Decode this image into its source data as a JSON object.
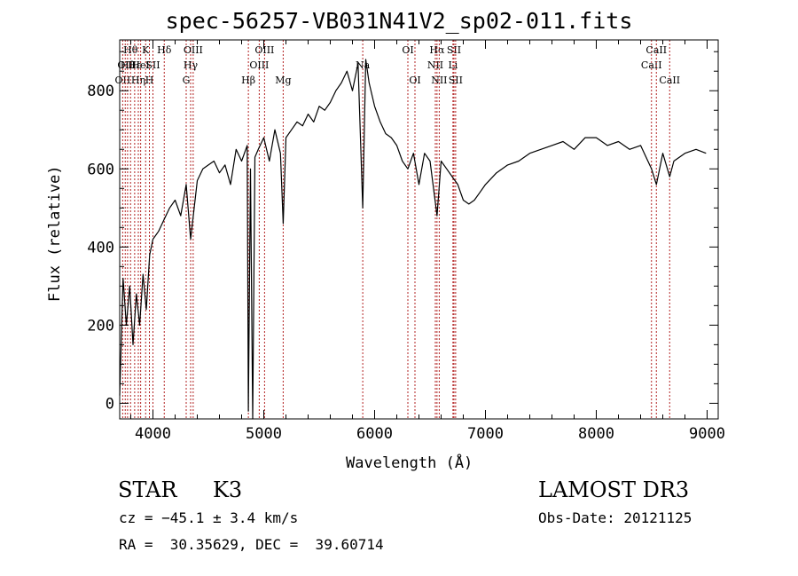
{
  "chart_data": {
    "type": "line",
    "title": "spec-56257-VB031N41V2_sp02-011.fits",
    "xlabel": "Wavelength (Å)",
    "ylabel": "Flux (relative)",
    "xlim": [
      3700,
      9100
    ],
    "ylim": [
      -40,
      930
    ],
    "x_ticks": [
      4000,
      5000,
      6000,
      7000,
      8000,
      9000
    ],
    "y_ticks": [
      0,
      200,
      400,
      600,
      800
    ],
    "grid": false,
    "series": [
      {
        "x": [
          3700,
          3730,
          3760,
          3790,
          3820,
          3850,
          3880,
          3910,
          3940,
          3970,
          4000,
          4050,
          4100,
          4150,
          4200,
          4250,
          4300,
          4340,
          4400,
          4450,
          4500,
          4550,
          4600,
          4650,
          4700,
          4750,
          4800,
          4850,
          4861,
          4880,
          4900,
          4920,
          4950,
          5000,
          5050,
          5100,
          5150,
          5175,
          5200,
          5250,
          5300,
          5350,
          5400,
          5450,
          5500,
          5550,
          5600,
          5650,
          5700,
          5750,
          5800,
          5850,
          5893,
          5920,
          5950,
          6000,
          6050,
          6100,
          6150,
          6200,
          6250,
          6300,
          6350,
          6400,
          6450,
          6500,
          6563,
          6600,
          6650,
          6700,
          6750,
          6800,
          6850,
          6900,
          6950,
          7000,
          7100,
          7200,
          7300,
          7400,
          7500,
          7600,
          7700,
          7800,
          7900,
          8000,
          8100,
          8200,
          8300,
          8400,
          8498,
          8542,
          8600,
          8662,
          8700,
          8800,
          8900,
          8990
        ],
        "y": [
          20,
          320,
          200,
          300,
          150,
          280,
          200,
          330,
          240,
          380,
          420,
          440,
          470,
          500,
          520,
          480,
          560,
          420,
          570,
          600,
          610,
          620,
          590,
          610,
          560,
          650,
          620,
          660,
          -20,
          600,
          -40,
          630,
          650,
          680,
          620,
          700,
          640,
          460,
          680,
          700,
          720,
          710,
          740,
          720,
          760,
          750,
          770,
          800,
          820,
          850,
          800,
          870,
          500,
          880,
          820,
          760,
          720,
          690,
          680,
          660,
          620,
          600,
          640,
          560,
          640,
          620,
          480,
          620,
          600,
          580,
          560,
          520,
          510,
          520,
          540,
          560,
          590,
          610,
          620,
          640,
          650,
          660,
          670,
          650,
          680,
          680,
          660,
          670,
          650,
          660,
          600,
          560,
          640,
          580,
          620,
          640,
          650,
          640
        ]
      }
    ],
    "line_labels": [
      {
        "w": 3727,
        "row": 2,
        "text": "OII"
      },
      {
        "w": 3750,
        "row": 1,
        "text": "OII"
      },
      {
        "w": 3771,
        "row": 1,
        "text": "Hθ"
      },
      {
        "w": 3798,
        "row": 0,
        "text": "Hθ"
      },
      {
        "w": 3835,
        "row": 1,
        "text": "Hε"
      },
      {
        "w": 3868,
        "row": 2,
        "text": "Hη"
      },
      {
        "w": 3889,
        "row": 1,
        "text": "HeI"
      },
      {
        "w": 3934,
        "row": 0,
        "text": "K"
      },
      {
        "w": 3968,
        "row": 2,
        "text": "H"
      },
      {
        "w": 4000,
        "row": 1,
        "text": "SII"
      },
      {
        "w": 4102,
        "row": 0,
        "text": "Hδ"
      },
      {
        "w": 4300,
        "row": 2,
        "text": "G"
      },
      {
        "w": 4340,
        "row": 1,
        "text": "Hγ"
      },
      {
        "w": 4363,
        "row": 0,
        "text": "OIII"
      },
      {
        "w": 4861,
        "row": 2,
        "text": "Hβ"
      },
      {
        "w": 4959,
        "row": 1,
        "text": "OIII"
      },
      {
        "w": 5007,
        "row": 0,
        "text": "OIII"
      },
      {
        "w": 5175,
        "row": 2,
        "text": "Mg"
      },
      {
        "w": 5893,
        "row": 1,
        "text": "Na"
      },
      {
        "w": 6300,
        "row": 0,
        "text": "OI"
      },
      {
        "w": 6364,
        "row": 2,
        "text": "OI"
      },
      {
        "w": 6548,
        "row": 1,
        "text": "NII"
      },
      {
        "w": 6563,
        "row": 0,
        "text": "Hα"
      },
      {
        "w": 6583,
        "row": 2,
        "text": "NII"
      },
      {
        "w": 6707,
        "row": 1,
        "text": "Li"
      },
      {
        "w": 6716,
        "row": 0,
        "text": "SII"
      },
      {
        "w": 6731,
        "row": 2,
        "text": "SII"
      },
      {
        "w": 8498,
        "row": 1,
        "text": "CaII"
      },
      {
        "w": 8542,
        "row": 0,
        "text": "CaII"
      },
      {
        "w": 8662,
        "row": 2,
        "text": "CaII"
      }
    ],
    "line_color": "#b22222",
    "spectrum_color": "#000000"
  },
  "info": {
    "class": "STAR",
    "subclass": "K3",
    "survey": "LAMOST DR3",
    "redshift": "cz = −45.1 ± 3.4 km/s",
    "obs_date": "Obs-Date: 20121125",
    "coords": "RA =  30.35629, DEC =  39.60714"
  }
}
